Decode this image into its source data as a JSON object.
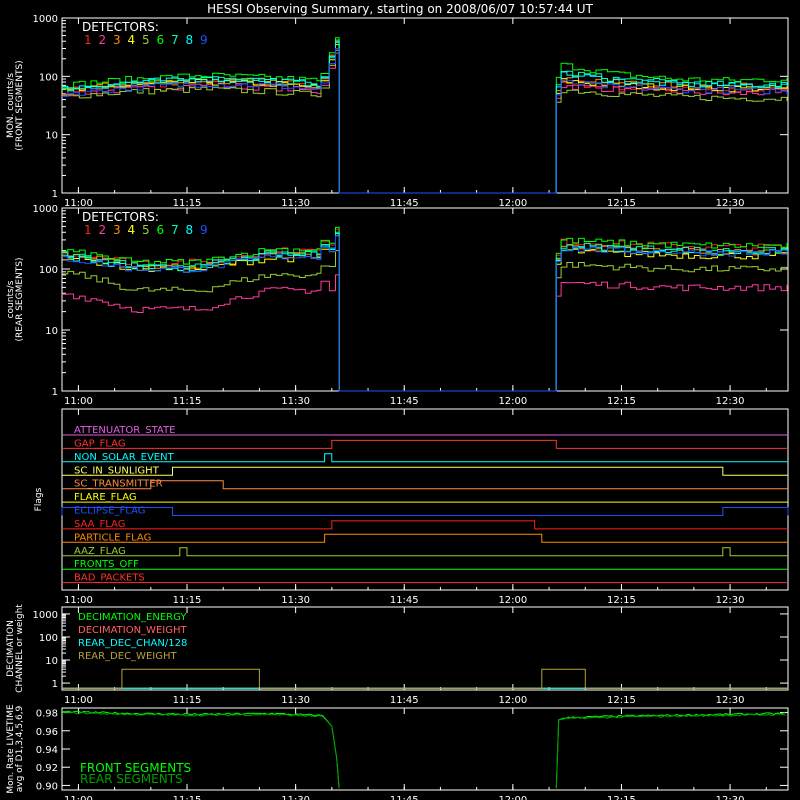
{
  "title": "HESSI Observing Summary, starting on 2008/06/07 10:57:44 UT",
  "colors": {
    "background": "#000000",
    "axes": "#ffffff",
    "detectors": [
      "#ff2020",
      "#ff3aa0",
      "#ff8c00",
      "#ffff00",
      "#9acd32",
      "#00ff00",
      "#00ffb0",
      "#00ffff",
      "#1e50ff"
    ]
  },
  "time_ticks": [
    "11:00",
    "11:15",
    "11:30",
    "11:45",
    "12:00",
    "12:15",
    "12:30"
  ],
  "chart_data": [
    {
      "type": "line",
      "id": "front",
      "ylabel_lines": [
        "MON. counts/s",
        "(FRONT SEGMENTS)"
      ],
      "legend_title": "DETECTORS:",
      "legend_digits": [
        "1",
        "2",
        "3",
        "4",
        "5",
        "6",
        "7",
        "8",
        "9"
      ],
      "yscale": "log",
      "ylim": [
        1,
        1000
      ],
      "ytick_labels": [
        "1",
        "10",
        "100",
        "1000"
      ],
      "x_start": "10:57:44",
      "x_end": "12:38:00",
      "eclipse_start": "11:36:00",
      "eclipse_end": "12:06:00",
      "series": [
        {
          "color": "#ff2020",
          "before": [
            55,
            70,
            80,
            75,
            60
          ],
          "spike": 300,
          "after": [
            80,
            65,
            60,
            58,
            58
          ]
        },
        {
          "color": "#ff3aa0",
          "before": [
            50,
            60,
            70,
            65,
            50
          ],
          "spike": 250,
          "after": [
            70,
            60,
            55,
            50,
            55
          ]
        },
        {
          "color": "#ff8c00",
          "before": [
            60,
            75,
            85,
            80,
            65
          ],
          "spike": 420,
          "after": [
            95,
            80,
            70,
            68,
            68
          ]
        },
        {
          "color": "#ffff00",
          "before": [
            55,
            70,
            80,
            75,
            60
          ],
          "spike": 350,
          "after": [
            85,
            70,
            65,
            62,
            62
          ]
        },
        {
          "color": "#9acd32",
          "before": [
            45,
            55,
            60,
            55,
            45
          ],
          "spike": 280,
          "after": [
            60,
            50,
            45,
            42,
            42
          ]
        },
        {
          "color": "#00ff00",
          "before": [
            70,
            90,
            105,
            95,
            80
          ],
          "spike": 460,
          "after": [
            160,
            110,
            90,
            85,
            90
          ]
        },
        {
          "color": "#00ffb0",
          "before": [
            60,
            78,
            90,
            82,
            68
          ],
          "spike": 380,
          "after": [
            120,
            90,
            78,
            72,
            72
          ]
        },
        {
          "color": "#00ffff",
          "before": [
            62,
            80,
            92,
            85,
            70
          ],
          "spike": 400,
          "after": [
            110,
            85,
            75,
            70,
            70
          ]
        },
        {
          "color": "#1e50ff",
          "before": [
            50,
            65,
            75,
            70,
            55
          ],
          "spike": 300,
          "after": [
            80,
            65,
            60,
            58,
            55
          ]
        }
      ]
    },
    {
      "type": "line",
      "id": "rear",
      "ylabel_lines": [
        "counts/s",
        "(REAR SEGMENTS)"
      ],
      "legend_title": "DETECTORS:",
      "legend_digits": [
        "1",
        "2",
        "3",
        "4",
        "5",
        "6",
        "7",
        "8",
        "9"
      ],
      "yscale": "log",
      "ylim": [
        1,
        1000
      ],
      "ytick_labels": [
        "1",
        "10",
        "100",
        "1000"
      ],
      "x_start": "10:57:44",
      "x_end": "12:38:00",
      "eclipse_start": "11:36:00",
      "eclipse_end": "12:06:00",
      "series": [
        {
          "color": "#ff2020",
          "before": [
            180,
            130,
            130,
            200,
            200
          ],
          "spike": 450,
          "after": [
            280,
            260,
            240,
            230,
            230
          ]
        },
        {
          "color": "#ff3aa0",
          "before": [
            40,
            22,
            22,
            45,
            45
          ],
          "spike": 80,
          "after": [
            60,
            55,
            50,
            50,
            50
          ]
        },
        {
          "color": "#ff8c00",
          "before": [
            180,
            110,
            110,
            170,
            170
          ],
          "spike": 380,
          "after": [
            240,
            210,
            200,
            190,
            190
          ]
        },
        {
          "color": "#ffff00",
          "before": [
            160,
            100,
            100,
            150,
            150
          ],
          "spike": 350,
          "after": [
            200,
            180,
            170,
            165,
            165
          ]
        },
        {
          "color": "#9acd32",
          "before": [
            90,
            45,
            45,
            80,
            80
          ],
          "spike": 200,
          "after": [
            120,
            110,
            100,
            100,
            100
          ]
        },
        {
          "color": "#00ff00",
          "before": [
            200,
            130,
            130,
            210,
            210
          ],
          "spike": 480,
          "after": [
            300,
            270,
            250,
            240,
            240
          ]
        },
        {
          "color": "#00ffb0",
          "before": [
            170,
            115,
            115,
            180,
            180
          ],
          "spike": 400,
          "after": [
            250,
            225,
            210,
            200,
            200
          ]
        },
        {
          "color": "#00ffff",
          "before": [
            160,
            105,
            105,
            170,
            170
          ],
          "spike": 380,
          "after": [
            230,
            210,
            200,
            195,
            195
          ]
        },
        {
          "color": "#1e50ff",
          "before": [
            150,
            100,
            100,
            160,
            160
          ],
          "spike": 350,
          "after": [
            220,
            200,
            190,
            185,
            185
          ]
        }
      ]
    },
    {
      "type": "line",
      "id": "flags",
      "ylabel_lines": [
        "Flags"
      ],
      "flags": [
        {
          "label": "ATTENUATOR_STATE",
          "color": "#e060e0",
          "high": []
        },
        {
          "label": "GAP_FLAG",
          "color": "#ff3030",
          "high": [
            [
              "11:35:00",
              "12:06:00"
            ]
          ]
        },
        {
          "label": "NON_SOLAR_EVENT",
          "color": "#00ffff",
          "high": [
            [
              "11:34:00",
              "11:35:00"
            ]
          ]
        },
        {
          "label": "SC_IN_SUNLIGHT",
          "color": "#ffff60",
          "high": [
            [
              "11:13:00",
              "12:29:00"
            ]
          ]
        },
        {
          "label": "SC_TRANSMITTER",
          "color": "#ff8c40",
          "high": [
            [
              "11:10:00",
              "11:20:00"
            ]
          ]
        },
        {
          "label": "FLARE_FLAG",
          "color": "#ffff00",
          "high": []
        },
        {
          "label": "ECLIPSE_FLAG",
          "color": "#1e50ff",
          "high": [
            [
              "10:57:44",
              "11:13:00"
            ],
            [
              "12:29:00",
              "12:38:00"
            ]
          ]
        },
        {
          "label": "SAA_FLAG",
          "color": "#ff2020",
          "high": [
            [
              "11:35:00",
              "12:03:00"
            ]
          ]
        },
        {
          "label": "PARTICLE_FLAG",
          "color": "#ff8c00",
          "high": [
            [
              "11:34:00",
              "12:04:00"
            ]
          ]
        },
        {
          "label": "AAZ_FLAG",
          "color": "#9acd32",
          "high": [
            [
              "11:14:00",
              "11:15:00"
            ],
            [
              "12:29:00",
              "12:30:00"
            ]
          ]
        },
        {
          "label": "FRONTS_OFF",
          "color": "#00ff00",
          "high": []
        },
        {
          "label": "BAD_PACKETS",
          "color": "#ff3030",
          "high": []
        }
      ]
    },
    {
      "type": "line",
      "id": "decimation",
      "ylabel_lines": [
        "DECIMATION",
        "CHANNEL or weight"
      ],
      "yscale": "log",
      "ylim": [
        0.5,
        2000
      ],
      "ytick_labels": [
        "1",
        "10",
        "100",
        "1000"
      ],
      "series": [
        {
          "name": "DECIMATION_ENERGY",
          "color": "#00ff00",
          "level": 0.6,
          "high": []
        },
        {
          "name": "DECIMATION_WEIGHT",
          "color": "#ff6060",
          "level": 0.6,
          "high": []
        },
        {
          "name": "REAR_DEC_CHAN/128",
          "color": "#00ffff",
          "level": 0.6,
          "high": []
        },
        {
          "name": "REAR_DEC_WEIGHT",
          "color": "#b8a040",
          "level": 0.6,
          "high_level": 4,
          "high": [
            [
              "11:06:00",
              "11:25:00"
            ],
            [
              "12:04:00",
              "12:10:00"
            ]
          ]
        }
      ]
    },
    {
      "type": "line",
      "id": "livetime",
      "ylabel_lines": [
        "Mon. Rate LIVETIME",
        "avg of D1,3,4,5,6,9"
      ],
      "ylim": [
        0.895,
        0.985
      ],
      "ytick_labels": [
        "0.90",
        "0.92",
        "0.94",
        "0.96",
        "0.98"
      ],
      "series": [
        {
          "name": "FRONT SEGMENTS",
          "color": "#00ff00",
          "before": [
            0.981,
            0.979,
            0.978,
            0.979,
            0.976
          ],
          "after": [
            0.974,
            0.976,
            0.977,
            0.978,
            0.979
          ]
        },
        {
          "name": "REAR SEGMENTS",
          "color": "#00a000",
          "before": [
            0.98,
            0.978,
            0.977,
            0.978,
            0.975
          ],
          "after": [
            0.973,
            0.975,
            0.976,
            0.977,
            0.978
          ]
        }
      ]
    }
  ]
}
